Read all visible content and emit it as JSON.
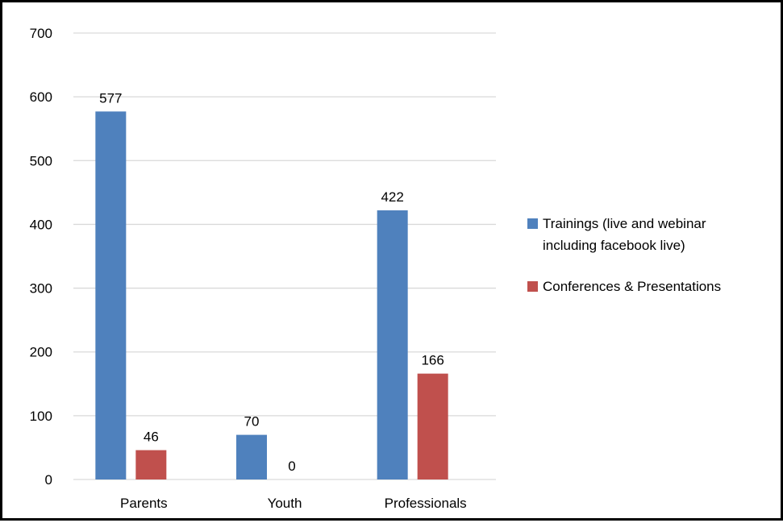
{
  "chart_data": {
    "type": "bar",
    "categories": [
      "Parents",
      "Youth",
      "Professionals"
    ],
    "series": [
      {
        "name_lines": [
          "Trainings (live and webinar",
          "including facebook live)"
        ],
        "values": [
          577,
          70,
          422
        ],
        "color": "#4f81bd"
      },
      {
        "name_lines": [
          "Conferences & Presentations"
        ],
        "values": [
          46,
          0,
          166
        ],
        "color": "#c0504d"
      }
    ],
    "yticks": [
      0,
      100,
      200,
      300,
      400,
      500,
      600,
      700
    ],
    "ylim": [
      0,
      700
    ],
    "grid": true,
    "grid_color": "#d9d9d9",
    "legend_position": "right",
    "data_labels": true
  }
}
